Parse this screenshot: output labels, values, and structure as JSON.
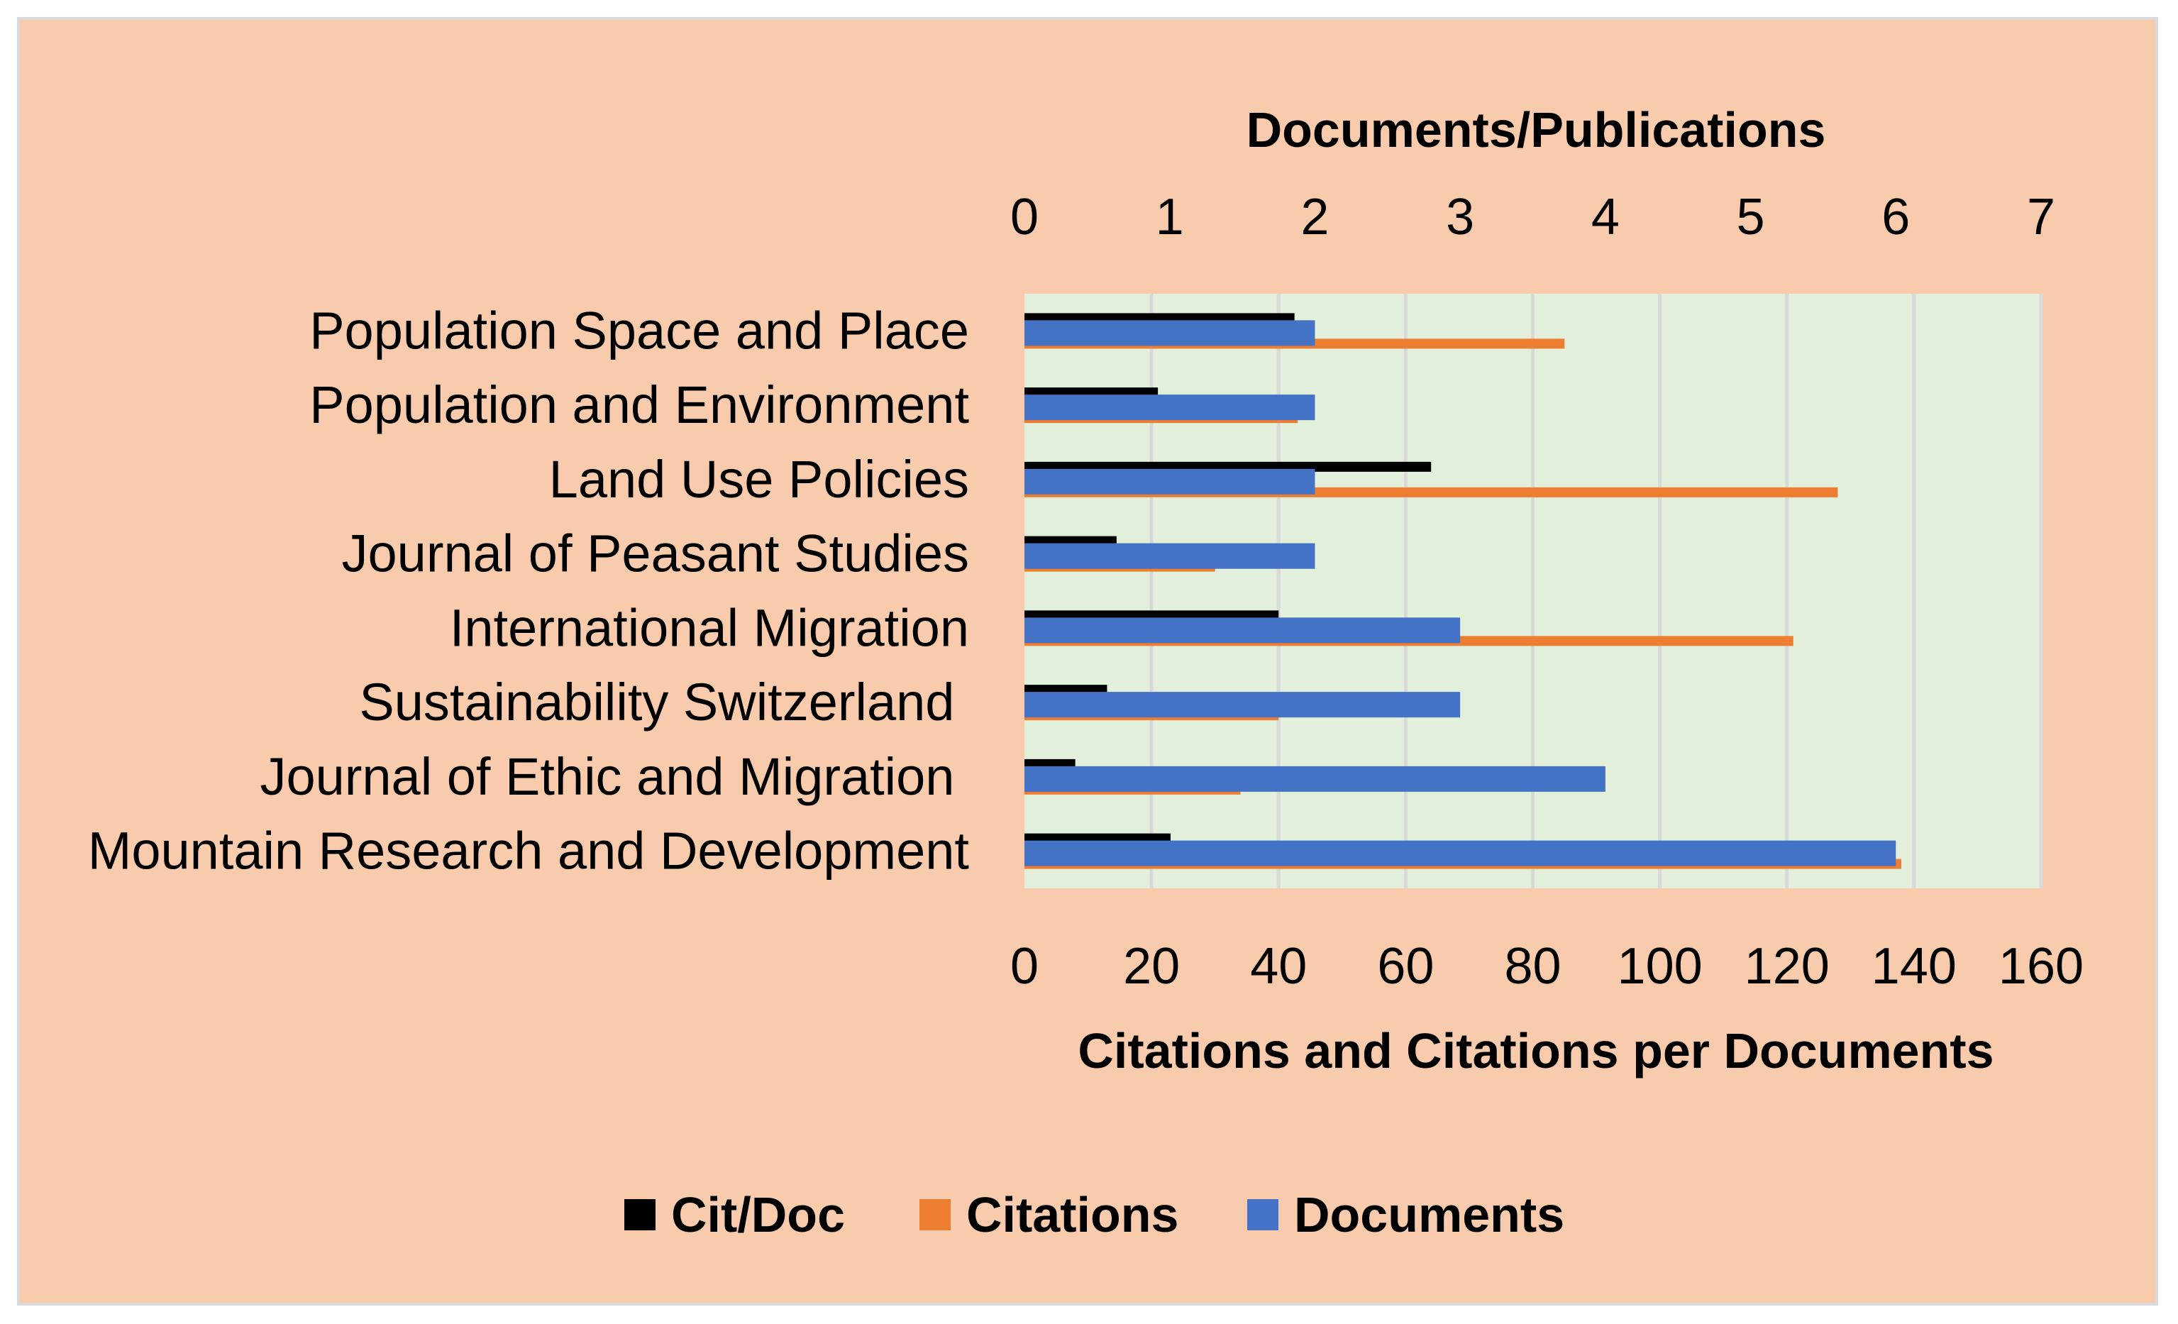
{
  "chart_data": {
    "type": "bar",
    "orientation": "horizontal",
    "categories": [
      "Population Space and Place",
      "Population and Environment",
      "Land Use Policies",
      "Journal of Peasant Studies",
      "International Migration",
      "Sustainability Switzerland ",
      "Journal of Ethic and Migration ",
      "Mountain Research and Development"
    ],
    "series": [
      {
        "name": "Cit/Doc",
        "color": "#000000",
        "axis": "bottom",
        "values": [
          42.5,
          21,
          64,
          14.5,
          40,
          13,
          8,
          23
        ]
      },
      {
        "name": "Citations",
        "color": "#ed7d31",
        "axis": "bottom",
        "values": [
          85,
          43,
          128,
          30,
          121,
          40,
          34,
          138
        ]
      },
      {
        "name": "Documents",
        "color": "#4472c4",
        "axis": "top",
        "values": [
          2,
          2,
          2,
          2,
          3,
          3,
          4,
          6
        ]
      }
    ],
    "top_axis": {
      "title": "Documents/Publications",
      "range": [
        0,
        7
      ],
      "ticks": [
        "0",
        "1",
        "2",
        "3",
        "4",
        "5",
        "6",
        "7"
      ]
    },
    "bottom_axis": {
      "title": "Citations and Citations per Documents",
      "range": [
        0,
        160
      ],
      "ticks": [
        "0",
        "20",
        "40",
        "60",
        "80",
        "100",
        "120",
        "140",
        "160"
      ]
    },
    "grid": true,
    "legend_position": "bottom",
    "colors": {
      "chart_background": "#f8cbad",
      "plot_background": "#e2efda",
      "gridline": "#d9d9d9"
    }
  }
}
